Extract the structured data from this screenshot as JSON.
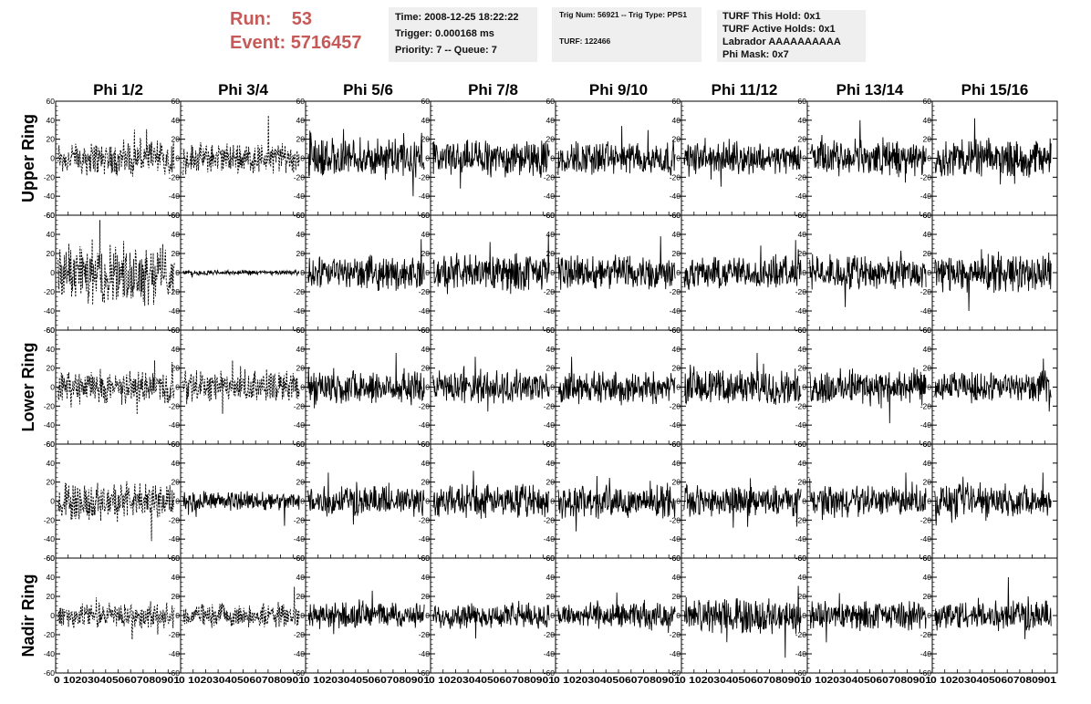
{
  "header": {
    "run_label": "Run:",
    "run_value": "53",
    "event_label": "Event:",
    "event_value": "5716457",
    "time": "Time: 2008-12-25 18:22:22",
    "trigger": "Trigger: 0.000168 ms",
    "priority": "Priority: 7 -- Queue: 7",
    "trig_num": "Trig Num: 56921 -- Trig Type: PPS1",
    "turf": "TURF: 122466",
    "turf_this_hold": "TURF This Hold: 0x1",
    "turf_active_holds": "TURF Active Holds: 0x1",
    "labrador": "Labrador AAAAAAAAAA",
    "phi_mask": "Phi Mask: 0x7"
  },
  "chart_data": {
    "type": "line",
    "columns": [
      "Phi 1/2",
      "Phi 3/4",
      "Phi 5/6",
      "Phi 7/8",
      "Phi 9/10",
      "Phi 11/12",
      "Phi 13/14",
      "Phi 15/16"
    ],
    "rows": [
      "Upper Ring",
      "",
      "Lower Ring",
      "",
      "Nadir Ring"
    ],
    "xlim": [
      0,
      100
    ],
    "ylim": [
      -60,
      60
    ],
    "xticks": [
      "0",
      "10",
      "20",
      "30",
      "40",
      "50",
      "60",
      "70",
      "80",
      "90",
      "100"
    ],
    "yticks": [
      "60",
      "40",
      "20",
      "0",
      "-20",
      "-40",
      "-60"
    ],
    "x_tick_label_text": "0 1020304050607080901",
    "samples_per_trace": 260,
    "dashed_columns": [
      0,
      1
    ],
    "grid": false,
    "panels": [
      {
        "row": 0,
        "col": 0,
        "amplitude": 14,
        "peak": 30,
        "style": "dashed"
      },
      {
        "row": 0,
        "col": 1,
        "amplitude": 12,
        "peak": 45,
        "style": "dashed"
      },
      {
        "row": 0,
        "col": 2,
        "amplitude": 16,
        "peak": 40,
        "style": "solid"
      },
      {
        "row": 0,
        "col": 3,
        "amplitude": 15,
        "peak": 32,
        "style": "solid"
      },
      {
        "row": 0,
        "col": 4,
        "amplitude": 14,
        "peak": 34,
        "style": "solid"
      },
      {
        "row": 0,
        "col": 5,
        "amplitude": 12,
        "peak": 30,
        "style": "solid"
      },
      {
        "row": 0,
        "col": 6,
        "amplitude": 14,
        "peak": 40,
        "style": "solid"
      },
      {
        "row": 0,
        "col": 7,
        "amplitude": 15,
        "peak": 42,
        "style": "solid"
      },
      {
        "row": 1,
        "col": 0,
        "amplitude": 24,
        "peak": 55,
        "style": "dashed"
      },
      {
        "row": 1,
        "col": 1,
        "amplitude": 2,
        "peak": 5,
        "style": "solid"
      },
      {
        "row": 1,
        "col": 2,
        "amplitude": 13,
        "peak": 35,
        "style": "solid"
      },
      {
        "row": 1,
        "col": 3,
        "amplitude": 15,
        "peak": 40,
        "style": "solid"
      },
      {
        "row": 1,
        "col": 4,
        "amplitude": 14,
        "peak": 38,
        "style": "solid"
      },
      {
        "row": 1,
        "col": 5,
        "amplitude": 13,
        "peak": 34,
        "style": "solid"
      },
      {
        "row": 1,
        "col": 6,
        "amplitude": 13,
        "peak": 36,
        "style": "solid"
      },
      {
        "row": 1,
        "col": 7,
        "amplitude": 15,
        "peak": 40,
        "style": "solid"
      },
      {
        "row": 2,
        "col": 0,
        "amplitude": 13,
        "peak": 28,
        "style": "dashed"
      },
      {
        "row": 2,
        "col": 1,
        "amplitude": 13,
        "peak": 28,
        "style": "dashed"
      },
      {
        "row": 2,
        "col": 2,
        "amplitude": 14,
        "peak": 36,
        "style": "solid"
      },
      {
        "row": 2,
        "col": 3,
        "amplitude": 13,
        "peak": 32,
        "style": "solid"
      },
      {
        "row": 2,
        "col": 4,
        "amplitude": 13,
        "peak": 32,
        "style": "solid"
      },
      {
        "row": 2,
        "col": 5,
        "amplitude": 14,
        "peak": 36,
        "style": "solid"
      },
      {
        "row": 2,
        "col": 6,
        "amplitude": 14,
        "peak": 38,
        "style": "solid"
      },
      {
        "row": 2,
        "col": 7,
        "amplitude": 12,
        "peak": 30,
        "style": "solid"
      },
      {
        "row": 3,
        "col": 0,
        "amplitude": 15,
        "peak": 42,
        "style": "dashed"
      },
      {
        "row": 3,
        "col": 1,
        "amplitude": 8,
        "peak": 26,
        "style": "solid"
      },
      {
        "row": 3,
        "col": 2,
        "amplitude": 12,
        "peak": 30,
        "style": "solid"
      },
      {
        "row": 3,
        "col": 3,
        "amplitude": 13,
        "peak": 32,
        "style": "solid"
      },
      {
        "row": 3,
        "col": 4,
        "amplitude": 13,
        "peak": 32,
        "style": "solid"
      },
      {
        "row": 3,
        "col": 5,
        "amplitude": 12,
        "peak": 28,
        "style": "solid"
      },
      {
        "row": 3,
        "col": 6,
        "amplitude": 12,
        "peak": 30,
        "style": "solid"
      },
      {
        "row": 3,
        "col": 7,
        "amplitude": 13,
        "peak": 30,
        "style": "solid"
      },
      {
        "row": 4,
        "col": 0,
        "amplitude": 10,
        "peak": 25,
        "style": "dashed"
      },
      {
        "row": 4,
        "col": 1,
        "amplitude": 9,
        "peak": 30,
        "style": "dashed"
      },
      {
        "row": 4,
        "col": 2,
        "amplitude": 10,
        "peak": 26,
        "style": "solid"
      },
      {
        "row": 4,
        "col": 3,
        "amplitude": 10,
        "peak": 24,
        "style": "solid"
      },
      {
        "row": 4,
        "col": 4,
        "amplitude": 10,
        "peak": 24,
        "style": "solid"
      },
      {
        "row": 4,
        "col": 5,
        "amplitude": 14,
        "peak": 44,
        "style": "solid"
      },
      {
        "row": 4,
        "col": 6,
        "amplitude": 11,
        "peak": 28,
        "style": "solid"
      },
      {
        "row": 4,
        "col": 7,
        "amplitude": 12,
        "peak": 40,
        "style": "solid"
      }
    ]
  }
}
